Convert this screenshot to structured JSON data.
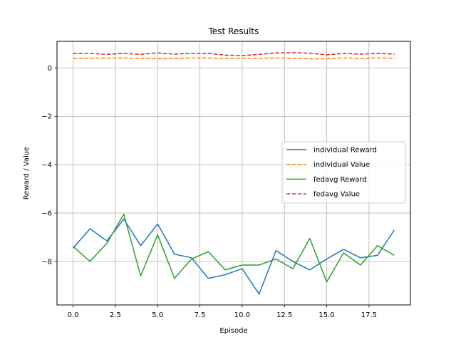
{
  "chart_data": {
    "type": "line",
    "title": "Test Results",
    "xlabel": "Episode",
    "ylabel": "Reward / Value",
    "xlim": [
      -0.95,
      19.95
    ],
    "ylim": [
      -9.8,
      1.1
    ],
    "xticks": [
      0.0,
      2.5,
      5.0,
      7.5,
      10.0,
      12.5,
      15.0,
      17.5
    ],
    "xtick_labels": [
      "0.0",
      "2.5",
      "5.0",
      "7.5",
      "10.0",
      "12.5",
      "15.0",
      "17.5"
    ],
    "yticks": [
      0,
      -2,
      -4,
      -6,
      -8
    ],
    "ytick_labels": [
      "0",
      "−2",
      "−4",
      "−6",
      "−8"
    ],
    "grid": true,
    "legend_position": "center-right",
    "x": [
      0,
      1,
      2,
      3,
      4,
      5,
      6,
      7,
      8,
      9,
      10,
      11,
      12,
      13,
      14,
      15,
      16,
      17,
      18,
      19
    ],
    "series": [
      {
        "name": "individual Reward",
        "color": "#1f77b4",
        "dashed": false,
        "values": [
          -7.45,
          -6.65,
          -7.15,
          -6.25,
          -7.35,
          -6.45,
          -7.7,
          -7.85,
          -8.7,
          -8.55,
          -8.3,
          -9.35,
          -7.55,
          -8.0,
          -8.35,
          -7.9,
          -7.5,
          -7.85,
          -7.75,
          -6.7
        ]
      },
      {
        "name": "individual Value",
        "color": "#ff7f0e",
        "dashed": true,
        "values": [
          0.4,
          0.4,
          0.41,
          0.41,
          0.39,
          0.38,
          0.39,
          0.41,
          0.41,
          0.4,
          0.4,
          0.4,
          0.41,
          0.4,
          0.38,
          0.38,
          0.41,
          0.4,
          0.41,
          0.4
        ]
      },
      {
        "name": "fedavg Reward",
        "color": "#2ca02c",
        "dashed": false,
        "values": [
          -7.38,
          -8.0,
          -7.25,
          -6.05,
          -8.6,
          -6.9,
          -8.7,
          -7.9,
          -7.6,
          -8.35,
          -8.15,
          -8.15,
          -7.9,
          -8.3,
          -7.05,
          -8.85,
          -7.65,
          -8.15,
          -7.35,
          -7.75
        ]
      },
      {
        "name": "fedavg Value",
        "color": "#d62728",
        "dashed": true,
        "values": [
          0.6,
          0.6,
          0.56,
          0.6,
          0.56,
          0.62,
          0.57,
          0.6,
          0.6,
          0.53,
          0.51,
          0.56,
          0.62,
          0.63,
          0.61,
          0.54,
          0.6,
          0.57,
          0.6,
          0.57
        ]
      }
    ]
  }
}
